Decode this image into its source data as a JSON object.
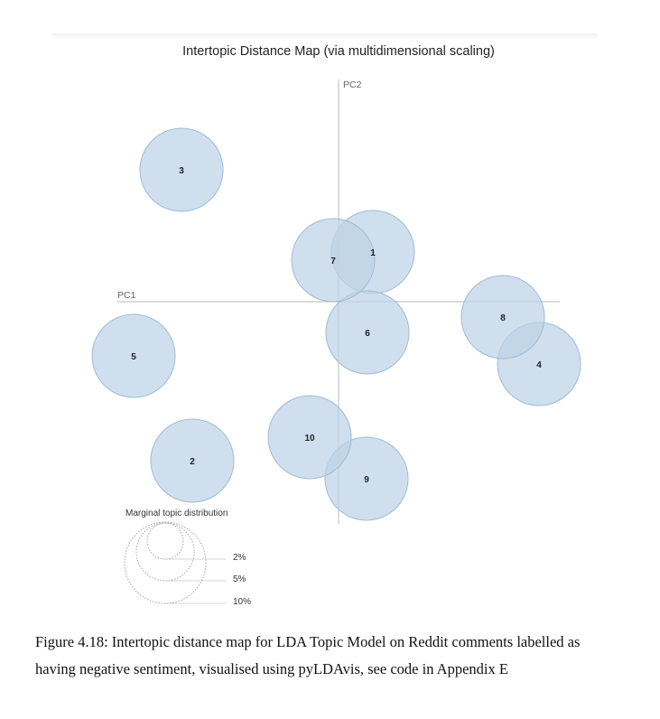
{
  "chart_data": {
    "type": "scatter",
    "title": "Intertopic Distance Map (via multidimensional scaling)",
    "xlabel": "PC1",
    "ylabel": "PC2",
    "grid": false,
    "points": [
      {
        "label": "1",
        "x": 0.38,
        "y": 0.55
      },
      {
        "label": "2",
        "x": -1.62,
        "y": -1.76
      },
      {
        "label": "3",
        "x": -1.74,
        "y": 1.46
      },
      {
        "label": "4",
        "x": 2.22,
        "y": -0.69
      },
      {
        "label": "5",
        "x": -2.27,
        "y": -0.6
      },
      {
        "label": "6",
        "x": 0.32,
        "y": -0.34
      },
      {
        "label": "7",
        "x": -0.06,
        "y": 0.46
      },
      {
        "label": "8",
        "x": 1.82,
        "y": -0.17
      },
      {
        "label": "9",
        "x": 0.31,
        "y": -1.96
      },
      {
        "label": "10",
        "x": -0.32,
        "y": -1.5
      }
    ],
    "legend": {
      "title": "Marginal topic distribution",
      "items": [
        "2%",
        "5%",
        "10%"
      ]
    }
  },
  "caption": {
    "line1": "Figure 4.18: Intertopic distance map for LDA Topic Model on Reddit comments labelled as",
    "line2": "having negative sentiment, visualised using pyLDAvis, see code in Appendix E"
  },
  "colors": {
    "bubble_fill": "#bcd3e6",
    "bubble_stroke": "#9fbcd6",
    "axis": "#c8c8c8",
    "text": "#222222"
  }
}
